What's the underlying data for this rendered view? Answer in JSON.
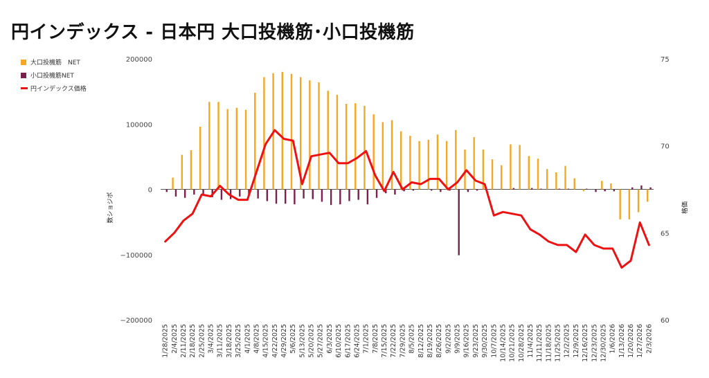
{
  "title": "円インデックス - 日本円 大口投機筋･小口投機筋",
  "legend": {
    "items": [
      {
        "label": "大口投機筋　NET",
        "color": "#f5a623",
        "kind": "bar"
      },
      {
        "label": "小口投機筋NET",
        "color": "#7b1f4e",
        "kind": "bar"
      },
      {
        "label": "円インデックス価格",
        "color": "#ee1111",
        "kind": "line"
      }
    ]
  },
  "chart_data": {
    "type": "bar+line",
    "title": "円インデックス - 日本円 大口投機筋･小口投機筋",
    "left_axis": {
      "label": "数ショジポ",
      "ylim": [
        -200000,
        200000
      ],
      "ticks": [
        200000,
        100000,
        0,
        -100000,
        -200000
      ],
      "tick_labels": [
        "200000",
        "100000",
        "0",
        "−100000",
        "−200000"
      ]
    },
    "right_axis": {
      "label": "格価",
      "ylim": [
        60,
        75
      ],
      "ticks": [
        75,
        70,
        65,
        60
      ],
      "tick_labels": [
        "75",
        "70",
        "65",
        "60"
      ]
    },
    "categories": [
      "1/28/2025",
      "2/4/2025",
      "2/11/2025",
      "2/18/2025",
      "2/25/2025",
      "3/4/2025",
      "3/11/2025",
      "3/18/2025",
      "3/25/2025",
      "4/1/2025",
      "4/8/2025",
      "4/15/2025",
      "4/22/2025",
      "4/29/2025",
      "5/6/2025",
      "5/13/2025",
      "5/20/2025",
      "5/27/2025",
      "6/3/2025",
      "6/10/2025",
      "6/17/2025",
      "6/24/2025",
      "7/1/2025",
      "7/8/2025",
      "7/15/2025",
      "7/22/2025",
      "7/29/2025",
      "8/5/2025",
      "8/12/2025",
      "8/19/2025",
      "8/26/2025",
      "9/2/2025",
      "9/9/2025",
      "9/16/2025",
      "9/23/2025",
      "9/30/2025",
      "10/7/2025",
      "10/14/2025",
      "10/21/2025",
      "10/28/2025",
      "11/4/2025",
      "11/11/2025",
      "11/18/2025",
      "11/25/2025",
      "12/2/2025",
      "12/9/2025",
      "12/16/2025",
      "12/23/2025",
      "12/30/2025",
      "1/6/2026",
      "1/13/2026",
      "1/20/2026",
      "1/27/2026",
      "2/3/2026"
    ],
    "x_tick_labels": [
      "1/28/2025",
      "2/4/2025",
      "2/11/2025",
      "2/18/2025",
      "2/25/2025",
      "3/4/2025",
      "3/11/2025",
      "3/18/2025",
      "3/25/2025",
      "4/1/2025",
      "4/8/2025",
      "4/15/2025",
      "4/22/2025",
      "4/29/2025",
      "5/6/2025",
      "5/13/2025",
      "5/20/2025",
      "5/27/2025",
      "6/3/2025",
      "6/10/2025",
      "6/17/2025",
      "6/24/2025",
      "7/1/2025",
      "7/8/2025",
      "7/15/2025",
      "7/22/2025",
      "7/29/2025",
      "8/5/2025",
      "8/12/2025",
      "8/19/2025",
      "8/26/2025",
      "9/2/2025",
      "9/9/2025",
      "9/16/2025",
      "9/23/2025",
      "9/30/2025",
      "10/7/2025",
      "10/14/2025",
      "10/21/2025",
      "10/28/2025",
      "11/4/2025",
      "11/11/2025",
      "11/18/2025",
      "11/25/2025",
      "12/2/2025",
      "12/9/2025",
      "12/16/2025",
      "12/23/2025",
      "12/30/2025",
      "1/6/2026",
      "1/13/2026",
      "1/20/2026",
      "1/27/2026",
      "2/3/2026"
    ],
    "series": [
      {
        "name": "大口投機筋　NET",
        "type": "bar",
        "axis": "left",
        "color": "#f5a623",
        "values": [
          0,
          18000,
          53000,
          60000,
          96000,
          134000,
          134000,
          123000,
          125000,
          122000,
          148000,
          172000,
          178000,
          180000,
          177000,
          172000,
          167000,
          164000,
          151000,
          145000,
          131000,
          132000,
          128000,
          115000,
          103000,
          106000,
          89000,
          82000,
          74000,
          76000,
          84000,
          74000,
          91000,
          61000,
          80000,
          61000,
          46000,
          37000,
          69000,
          68000,
          51000,
          47000,
          31000,
          26000,
          36000,
          17000,
          -3000,
          0,
          13000,
          9000,
          -46000,
          -46000,
          -35000,
          -19000
        ]
      },
      {
        "name": "小口投機筋NET",
        "type": "bar",
        "axis": "left",
        "color": "#7b1f4e",
        "values": [
          -4000,
          -11000,
          -13000,
          -8000,
          -9000,
          -12000,
          -16000,
          -15000,
          -11000,
          -8000,
          -14000,
          -18000,
          -22000,
          -22000,
          -23000,
          -14000,
          -15000,
          -19000,
          -24000,
          -23000,
          -18000,
          -16000,
          -23000,
          -13000,
          -6000,
          -8000,
          -3000,
          -2000,
          0,
          -2000,
          -4000,
          -2000,
          -101000,
          -4000,
          -2000,
          0,
          0,
          0,
          2000,
          0,
          2000,
          1000,
          0,
          1000,
          1000,
          0,
          1000,
          -4000,
          -3000,
          -3000,
          0,
          3000,
          6000,
          3000
        ]
      },
      {
        "name": "円インデックス価格",
        "type": "line",
        "axis": "right",
        "color": "#ee1111",
        "values": [
          64.5,
          65.0,
          65.7,
          66.1,
          67.2,
          67.1,
          67.7,
          67.2,
          66.9,
          66.9,
          68.5,
          70.1,
          70.9,
          70.4,
          70.3,
          67.8,
          69.4,
          69.5,
          69.6,
          69.0,
          69.0,
          69.3,
          69.7,
          68.3,
          67.4,
          68.5,
          67.5,
          67.9,
          67.8,
          68.1,
          68.1,
          67.5,
          67.9,
          68.6,
          68.0,
          67.8,
          66.0,
          66.2,
          66.1,
          66.0,
          65.2,
          64.9,
          64.5,
          64.3,
          64.3,
          63.9,
          64.9,
          64.3,
          64.1,
          64.1,
          63.0,
          63.4,
          65.6,
          64.3
        ]
      }
    ],
    "grid": false,
    "legend_position": "top-left"
  }
}
